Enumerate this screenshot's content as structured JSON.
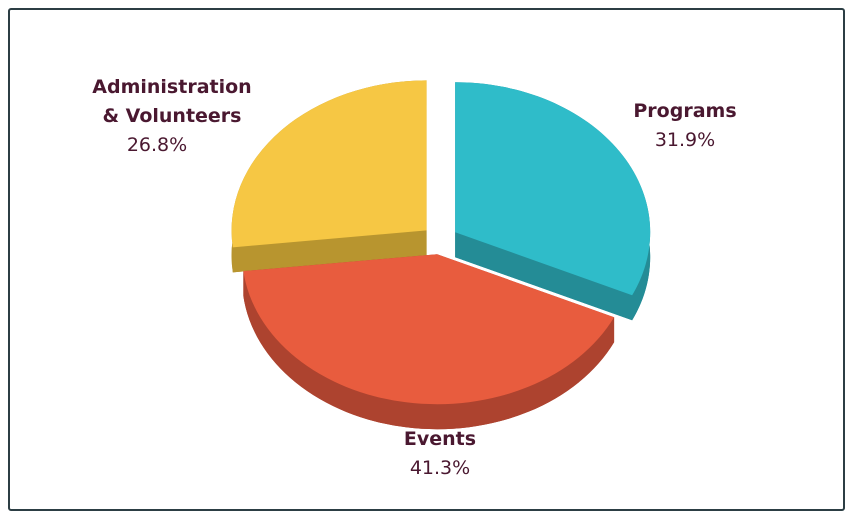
{
  "chart_data": {
    "type": "pie",
    "categories": [
      "Programs",
      "Events",
      "Administration & Volunteers"
    ],
    "values": [
      31.9,
      41.3,
      26.8
    ],
    "value_labels": [
      "31.9%",
      "41.3%",
      "26.8%"
    ],
    "colors": [
      "#2fbcc9",
      "#e85c3e",
      "#f6c744"
    ],
    "side_colors": [
      "#248c96",
      "#ad432f",
      "#b8952f"
    ],
    "exploded": true,
    "three_d": true
  }
}
